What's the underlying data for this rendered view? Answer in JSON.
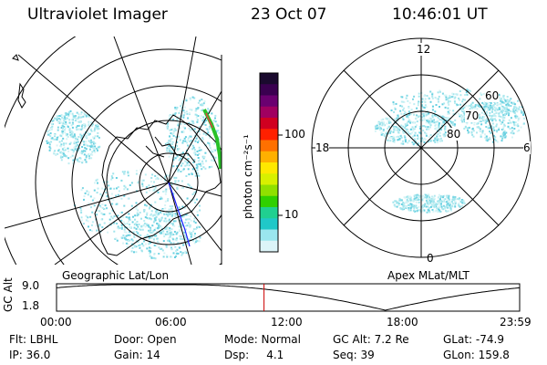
{
  "header": {
    "title": "Ultraviolet Imager",
    "date": "23 Oct 07",
    "time": "10:46:01 UT"
  },
  "colorbar": {
    "label": "photon cm⁻²s⁻¹",
    "ticks": [
      "100",
      "10"
    ],
    "colors": [
      "#1a0a2e",
      "#3a0050",
      "#6a0070",
      "#a00060",
      "#d00020",
      "#ff2000",
      "#ff7000",
      "#ffb000",
      "#ffe800",
      "#d8f000",
      "#90e000",
      "#30d000",
      "#20d090",
      "#20c8c8",
      "#9ae6ee",
      "#dcf4f8"
    ]
  },
  "left_panel": {
    "caption": "Geographic Lat/Lon"
  },
  "right_panel": {
    "caption": "Apex MLat/MLT",
    "mlt_labels": {
      "top": "12",
      "bottom": "0",
      "left": "18",
      "right": "6"
    },
    "lat_labels": [
      "60",
      "70",
      "80"
    ]
  },
  "altitude_plot": {
    "axis_label": "GC Alt",
    "y_ticks": [
      "9.0",
      "1.8"
    ],
    "x_ticks": [
      "00:00",
      "06:00",
      "12:00",
      "18:00",
      "23:59"
    ],
    "current_time_fraction": 0.448,
    "marker_color": "#cc0000"
  },
  "footer": {
    "row1": [
      "Flt: LBHL",
      "Door: Open",
      "Mode: Normal",
      "GC Alt: 7.2 Re",
      "GLat: -74.9"
    ],
    "row2": [
      "IP: 36.0",
      "Gain: 14",
      "Dsp:     4.1",
      "Seq: 39",
      "GLon: 159.8"
    ]
  }
}
